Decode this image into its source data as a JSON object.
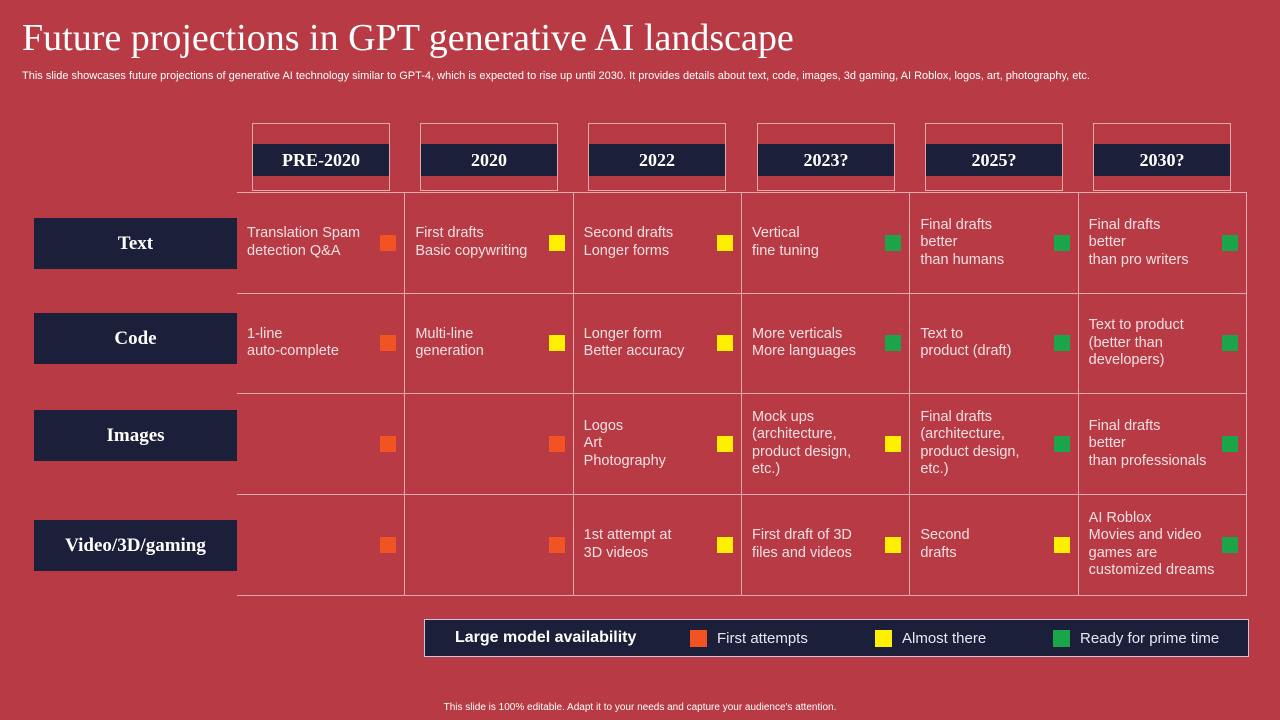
{
  "title": "Future projections in GPT generative AI landscape",
  "subtitle": "This slide showcases future projections of generative AI technology similar to GPT-4, which is expected to rise up until 2030. It provides details about text, code, images, 3d gaming, AI Roblox, logos, art, photography, etc.",
  "colors": {
    "background": "#b73a45",
    "navy": "#1c1f3a",
    "first_attempts": "#f25322",
    "almost_there": "#ffef00",
    "ready": "#1aa54b"
  },
  "years": [
    "PRE-2020",
    "2020",
    "2022",
    "2023?",
    "2025?",
    "2030?"
  ],
  "rows": [
    {
      "label": "Text",
      "cells": [
        {
          "text": "Translation Spam\ndetection Q&A",
          "status": "first_attempts"
        },
        {
          "text": "First drafts\nBasic copywriting",
          "status": "almost_there"
        },
        {
          "text": "Second drafts\nLonger forms",
          "status": "almost_there"
        },
        {
          "text": "Vertical\nfine tuning",
          "status": "ready"
        },
        {
          "text": "Final drafts\nbetter\nthan humans",
          "status": "ready"
        },
        {
          "text": "Final drafts\nbetter\nthan pro writers",
          "status": "ready"
        }
      ]
    },
    {
      "label": "Code",
      "cells": [
        {
          "text": "1-line\nauto-complete",
          "status": "first_attempts"
        },
        {
          "text": "Multi-line\ngeneration",
          "status": "almost_there"
        },
        {
          "text": "Longer form\nBetter accuracy",
          "status": "almost_there"
        },
        {
          "text": "More verticals\nMore languages",
          "status": "ready"
        },
        {
          "text": "Text to\nproduct (draft)",
          "status": "ready"
        },
        {
          "text": "Text to product\n(better than\ndevelopers)",
          "status": "ready"
        }
      ]
    },
    {
      "label": "Images",
      "cells": [
        {
          "text": "",
          "status": "first_attempts"
        },
        {
          "text": "",
          "status": "first_attempts"
        },
        {
          "text": "Logos\nArt\nPhotography",
          "status": "almost_there"
        },
        {
          "text": "Mock ups\n(architecture,\nproduct design, etc.)",
          "status": "almost_there"
        },
        {
          "text": "Final drafts\n(architecture,\nproduct design, etc.)",
          "status": "ready"
        },
        {
          "text": "Final drafts\nbetter\nthan professionals",
          "status": "ready"
        }
      ]
    },
    {
      "label": "Video/3D/gaming",
      "cells": [
        {
          "text": "",
          "status": "first_attempts"
        },
        {
          "text": "",
          "status": "first_attempts"
        },
        {
          "text": "1st attempt at\n3D videos",
          "status": "almost_there"
        },
        {
          "text": "First draft of 3D\nfiles and videos",
          "status": "almost_there"
        },
        {
          "text": "Second\ndrafts",
          "status": "almost_there"
        },
        {
          "text": "AI Roblox\nMovies and video\ngames are\ncustomized dreams",
          "status": "ready"
        }
      ]
    }
  ],
  "legend": {
    "title": "Large model availability",
    "items": [
      {
        "label": "First attempts",
        "status": "first_attempts"
      },
      {
        "label": "Almost there",
        "status": "almost_there"
      },
      {
        "label": "Ready for prime time",
        "status": "ready"
      }
    ]
  },
  "footer": "This slide is 100% editable. Adapt it to your needs and capture your audience's attention."
}
